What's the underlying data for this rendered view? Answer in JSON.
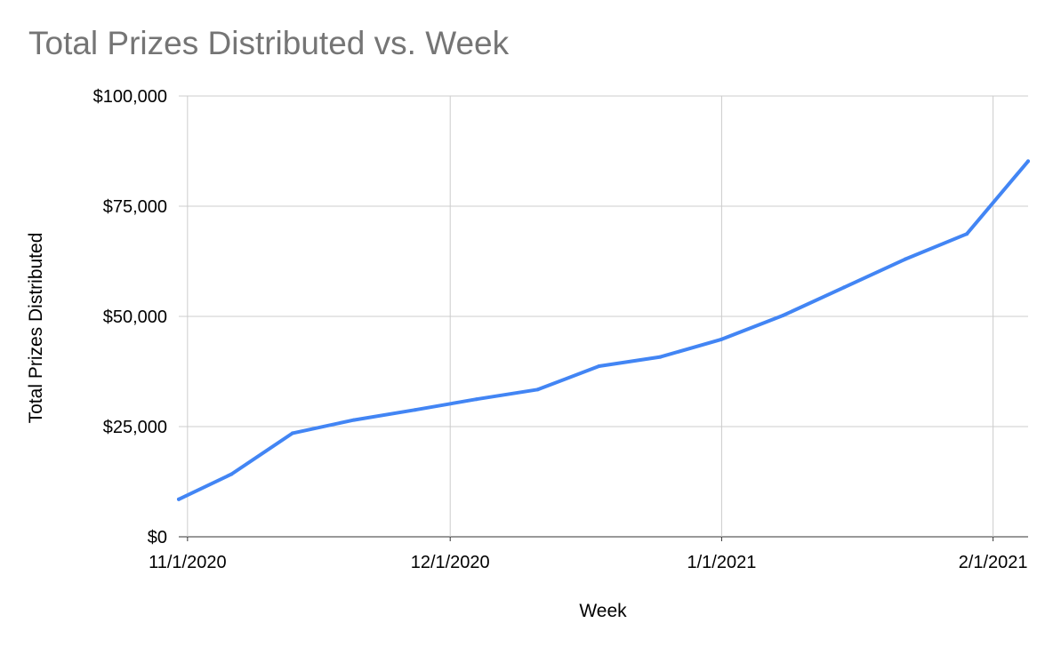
{
  "chart_data": {
    "type": "line",
    "title": "Total Prizes Distributed vs. Week",
    "xlabel": "Week",
    "ylabel": "Total Prizes Distributed",
    "ylim": [
      0,
      100000
    ],
    "xlim": [
      "2020-10-31",
      "2021-02-05"
    ],
    "y_ticks": [
      0,
      25000,
      50000,
      75000,
      100000
    ],
    "y_tick_labels": [
      "$0",
      "$25,000",
      "$50,000",
      "$75,000",
      "$100,000"
    ],
    "x_ticks": [
      "2020-11-01",
      "2020-12-01",
      "2021-01-01",
      "2021-02-01"
    ],
    "x_tick_labels": [
      "11/1/2020",
      "12/1/2020",
      "1/1/2021",
      "2/1/2021"
    ],
    "grid": true,
    "legend": "none",
    "series": [
      {
        "color": "#4285f4",
        "x": [
          "2020-10-31",
          "2020-11-06",
          "2020-11-13",
          "2020-11-20",
          "2020-11-27",
          "2020-12-04",
          "2020-12-11",
          "2020-12-18",
          "2020-12-25",
          "2021-01-01",
          "2021-01-08",
          "2021-01-15",
          "2021-01-22",
          "2021-01-29",
          "2021-02-05"
        ],
        "y": [
          8500,
          14200,
          23500,
          26500,
          28800,
          31200,
          33400,
          38700,
          40800,
          44800,
          50200,
          56600,
          63000,
          68700,
          85200
        ]
      }
    ]
  }
}
